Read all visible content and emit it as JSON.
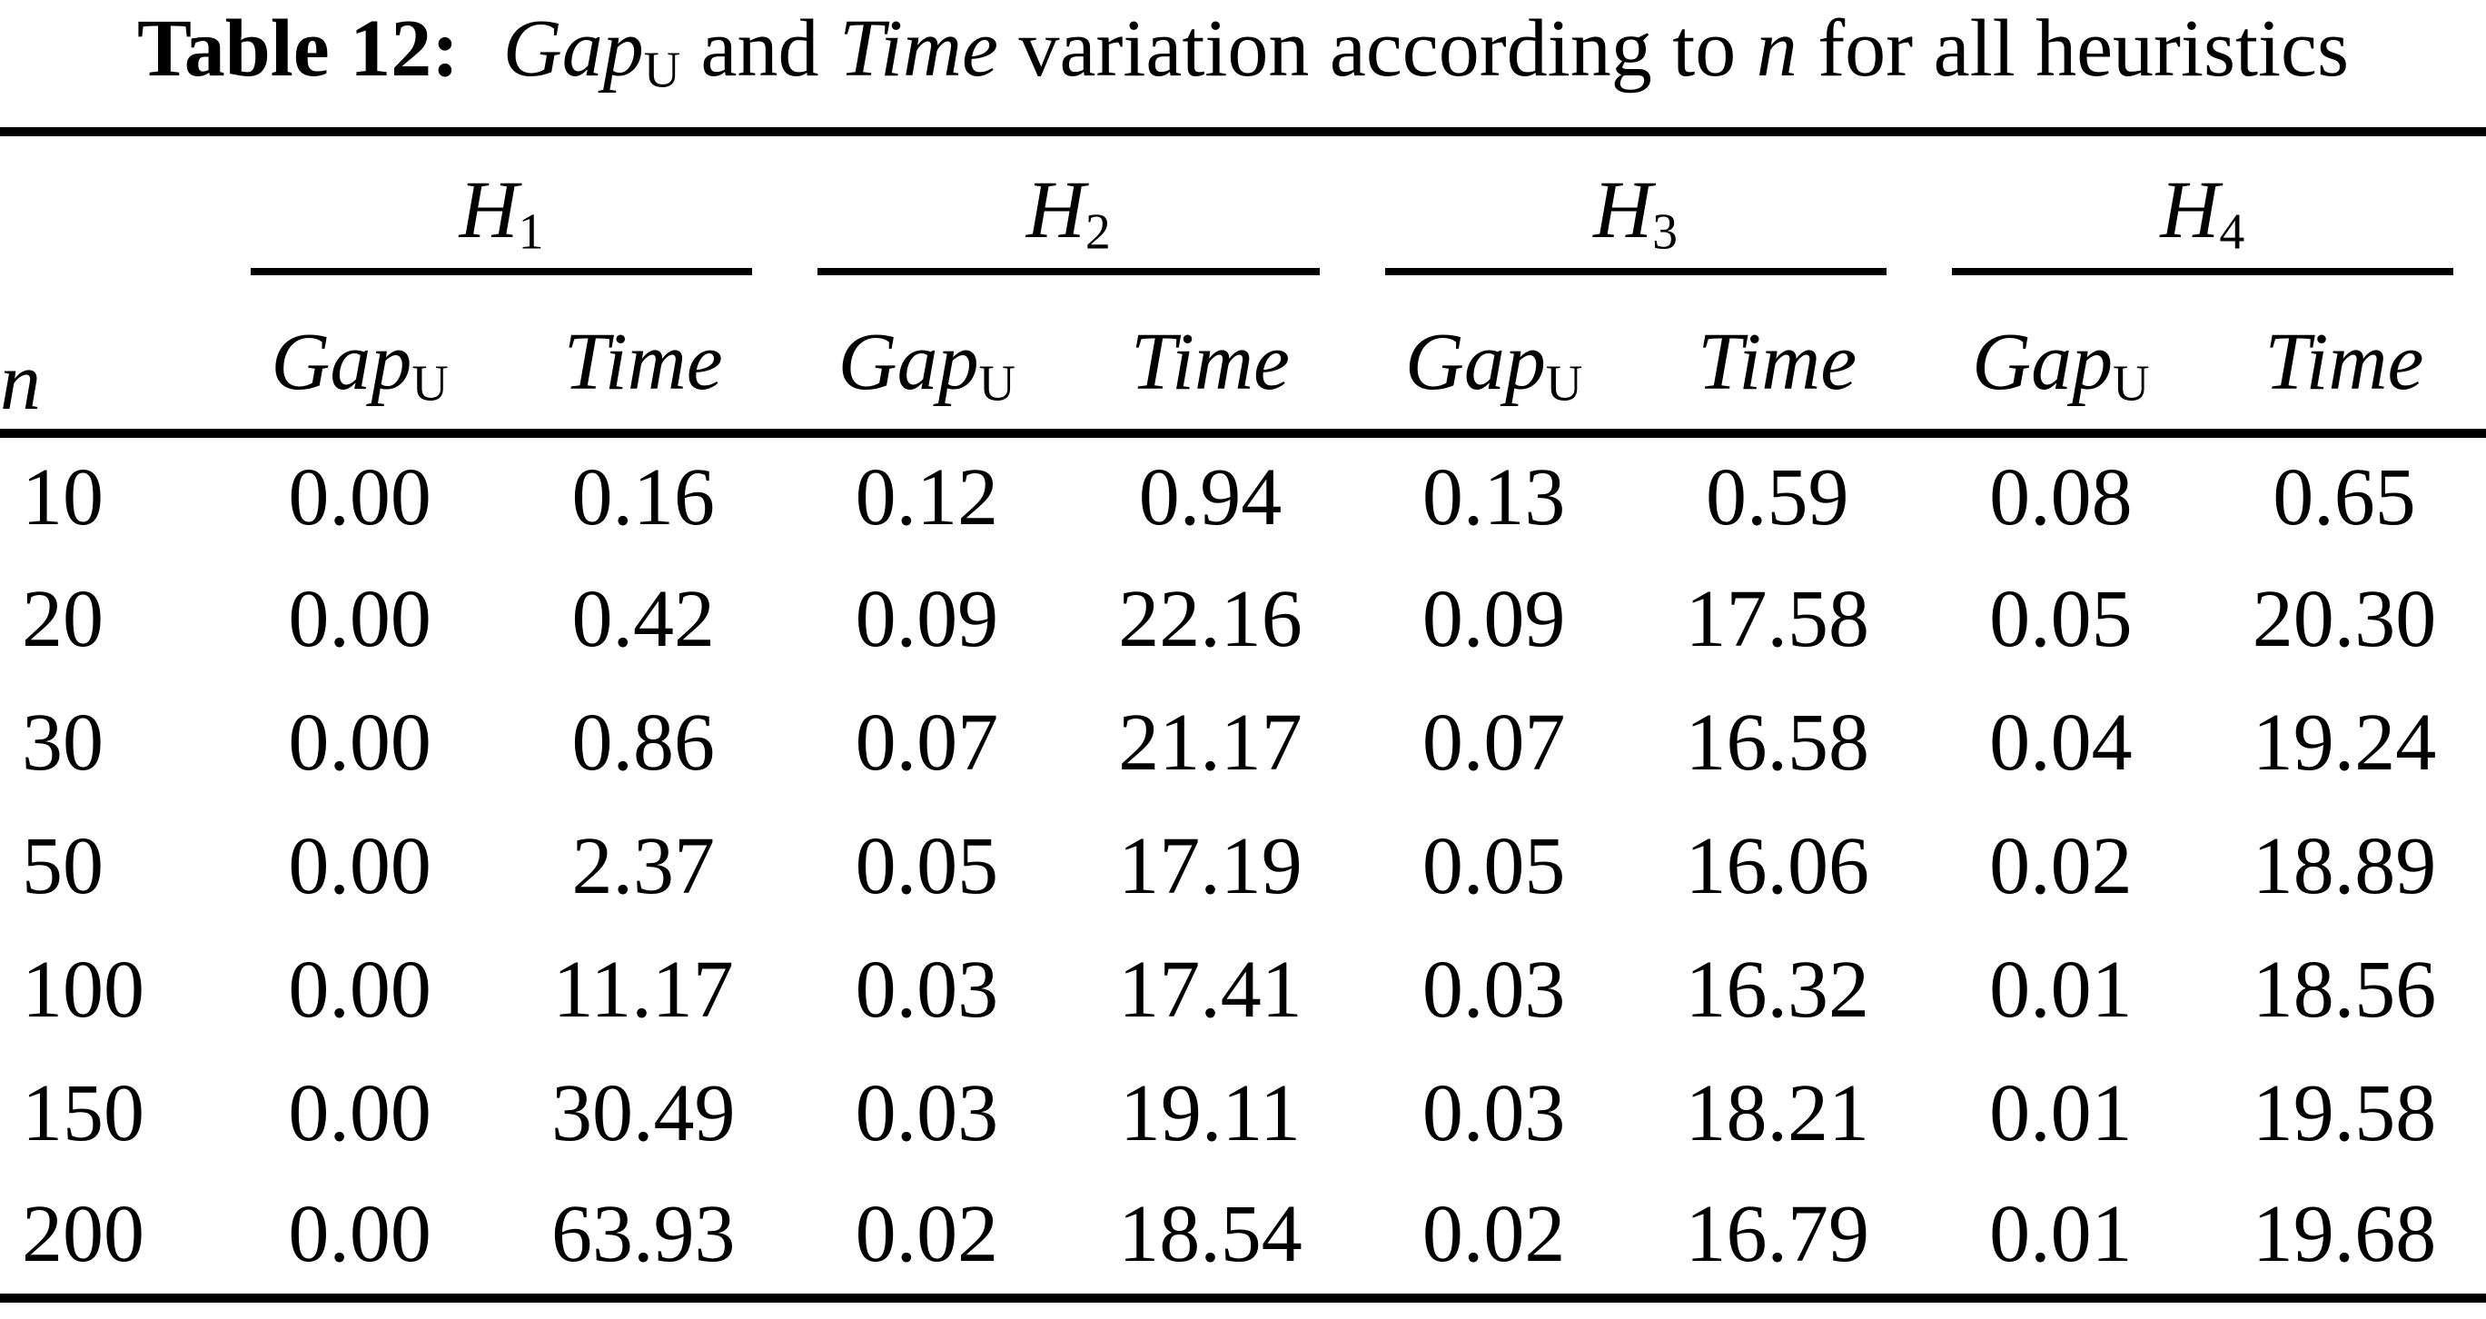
{
  "page": {
    "background_color": "#ffffff",
    "text_color": "#000000"
  },
  "title": {
    "label_bold": "Table 12:",
    "gap_word": "Gap",
    "gap_subscript": "U",
    "conj_and": "and",
    "time_word": "Time",
    "middle_phrase": "variation according to",
    "n_symbol": "n",
    "tail_phrase": "for all heuristics"
  },
  "table": {
    "n_header": "n",
    "groups": [
      {
        "letter": "H",
        "subscript": "1"
      },
      {
        "letter": "H",
        "subscript": "2"
      },
      {
        "letter": "H",
        "subscript": "3"
      },
      {
        "letter": "H",
        "subscript": "4"
      }
    ],
    "sub_headers": {
      "gap_label": "Gap",
      "gap_subscript": "U",
      "time_label": "Time"
    },
    "rows": [
      {
        "n": "10",
        "values": [
          "0.00",
          "0.16",
          "0.12",
          "0.94",
          "0.13",
          "0.59",
          "0.08",
          "0.65"
        ]
      },
      {
        "n": "20",
        "values": [
          "0.00",
          "0.42",
          "0.09",
          "22.16",
          "0.09",
          "17.58",
          "0.05",
          "20.30"
        ]
      },
      {
        "n": "30",
        "values": [
          "0.00",
          "0.86",
          "0.07",
          "21.17",
          "0.07",
          "16.58",
          "0.04",
          "19.24"
        ]
      },
      {
        "n": "50",
        "values": [
          "0.00",
          "2.37",
          "0.05",
          "17.19",
          "0.05",
          "16.06",
          "0.02",
          "18.89"
        ]
      },
      {
        "n": "100",
        "values": [
          "0.00",
          "11.17",
          "0.03",
          "17.41",
          "0.03",
          "16.32",
          "0.01",
          "18.56"
        ]
      },
      {
        "n": "150",
        "values": [
          "0.00",
          "30.49",
          "0.03",
          "19.11",
          "0.03",
          "18.21",
          "0.01",
          "19.58"
        ]
      },
      {
        "n": "200",
        "values": [
          "0.00",
          "63.93",
          "0.02",
          "18.54",
          "0.02",
          "16.79",
          "0.01",
          "19.68"
        ]
      }
    ]
  }
}
